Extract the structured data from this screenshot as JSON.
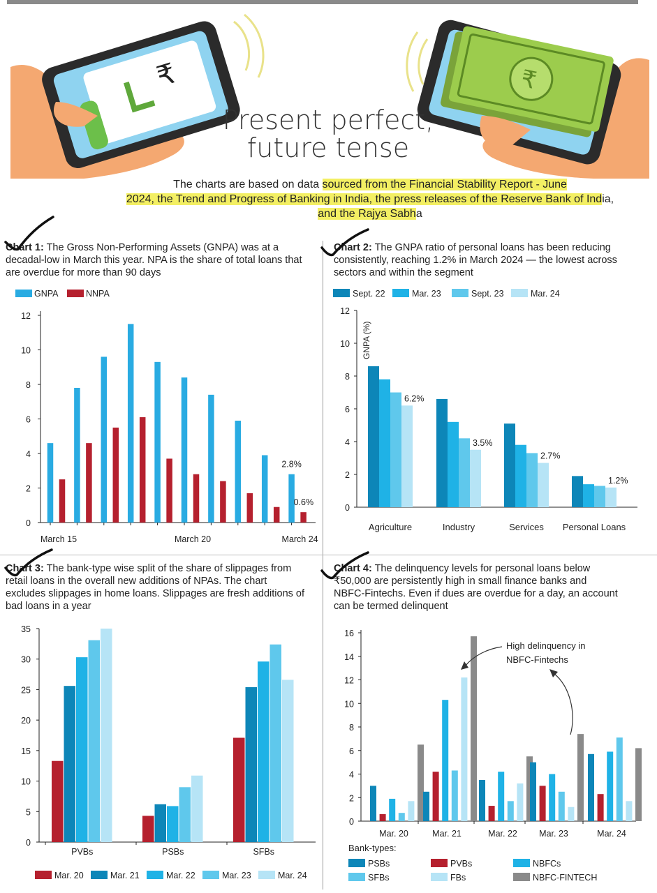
{
  "header": {
    "title_line1": "Present perfect,",
    "title_line2": "future tense",
    "intro_plain1": "The charts are based on data ",
    "intro_hl1": "sourced from the Financial Stability Report - June",
    "intro_hl2": "2024, the Trend and Progress of Banking in India, the press releases of the Reserve Bank of Ind",
    "intro_plain2": "ia,",
    "intro_hl3": "and the Rajya Sabh",
    "intro_plain3": "a"
  },
  "captions": {
    "c1_label": "Chart 1:",
    "c1_text": " The Gross Non-Performing Assets (GNPA) was at a decadal-low in March this year. NPA is the share of total loans that are overdue for more than 90 days",
    "c2_label": "Chart 2:",
    "c2_text": " The GNPA ratio of personal loans has been reducing consistently, reaching 1.2% in March 2024 — the lowest across sectors and within the segment",
    "c3_label": "Chart 3:",
    "c3_text": " The bank-type wise split of the share of slippages from retail loans in the overall new additions of NPAs. The chart excludes slippages in home loans. Slippages are fresh additions of bad loans in a year",
    "c4_label": "Chart 4:",
    "c4_text": " The delinquency levels for personal loans below ₹50,000 are persistently high in small finance banks and NBFC-Fintechs. Even if dues are overdue for a day, an account can be termed delinquent"
  },
  "colors": {
    "gnpa": "#29abe2",
    "nnpa": "#b5202e",
    "c2": [
      "#0d86b8",
      "#1fb2e6",
      "#5fc8ec",
      "#b6e4f6"
    ],
    "c3": [
      "#b5202e",
      "#0d86b8",
      "#1fb2e6",
      "#5fc8ec",
      "#b6e4f6"
    ],
    "c4": [
      "#0d86b8",
      "#b5202e",
      "#1fb2e6",
      "#5fc8ec",
      "#b6e4f6",
      "#8a8a8a"
    ]
  },
  "chart_data": [
    {
      "id": "chart1",
      "type": "bar",
      "legend": [
        "GNPA",
        "NNPA"
      ],
      "categories": [
        "March 15",
        "",
        "",
        "",
        "",
        "March 20",
        "",
        "",
        "",
        "March 24"
      ],
      "series": [
        {
          "name": "GNPA",
          "values": [
            4.6,
            7.8,
            9.6,
            11.5,
            9.3,
            8.4,
            7.4,
            5.9,
            3.9,
            2.8
          ]
        },
        {
          "name": "NNPA",
          "values": [
            2.5,
            4.6,
            5.5,
            6.1,
            3.7,
            2.8,
            2.4,
            1.7,
            0.9,
            0.6
          ]
        }
      ],
      "yticks": [
        "0",
        "2",
        "4",
        "6",
        "8",
        "10",
        "12"
      ],
      "ylim": [
        0,
        12
      ],
      "annotations": [
        "2.8%",
        "0.6%"
      ]
    },
    {
      "id": "chart2",
      "type": "bar",
      "legend": [
        "Sept. 22",
        "Mar. 23",
        "Sept. 23",
        "Mar. 24"
      ],
      "ylabel": "GNPA (%)",
      "categories": [
        "Agriculture",
        "Industry",
        "Services",
        "Personal Loans"
      ],
      "series": [
        {
          "name": "Sept. 22",
          "values": [
            8.6,
            6.6,
            5.1,
            1.9
          ]
        },
        {
          "name": "Mar. 23",
          "values": [
            7.8,
            5.2,
            3.8,
            1.4
          ]
        },
        {
          "name": "Sept. 23",
          "values": [
            7.0,
            4.2,
            3.3,
            1.3
          ]
        },
        {
          "name": "Mar. 24",
          "values": [
            6.2,
            3.5,
            2.7,
            1.2
          ]
        }
      ],
      "yticks": [
        "0",
        "2",
        "4",
        "6",
        "8",
        "10",
        "12"
      ],
      "ylim": [
        0,
        12
      ],
      "annotations": [
        "6.2%",
        "3.5%",
        "2.7%",
        "1.2%"
      ]
    },
    {
      "id": "chart3",
      "type": "bar",
      "legend": [
        "Mar. 20",
        "Mar. 21",
        "Mar. 22",
        "Mar. 23",
        "Mar. 24"
      ],
      "categories": [
        "PVBs",
        "PSBs",
        "SFBs"
      ],
      "series": [
        {
          "name": "Mar. 20",
          "values": [
            13.3,
            4.3,
            17.1
          ]
        },
        {
          "name": "Mar. 21",
          "values": [
            25.6,
            6.2,
            25.4
          ]
        },
        {
          "name": "Mar. 22",
          "values": [
            30.3,
            5.9,
            29.6
          ]
        },
        {
          "name": "Mar. 23",
          "values": [
            33.1,
            9.0,
            32.4
          ]
        },
        {
          "name": "Mar. 24",
          "values": [
            35.0,
            10.9,
            26.6
          ]
        }
      ],
      "yticks": [
        "0",
        "5",
        "10",
        "15",
        "20",
        "25",
        "30",
        "35"
      ],
      "ylim": [
        0,
        35
      ]
    },
    {
      "id": "chart4",
      "type": "bar",
      "legend_title": "Bank-types:",
      "legend": [
        "PSBs",
        "PVBs",
        "NBFCs",
        "SFBs",
        "FBs",
        "NBFC-FINTECH"
      ],
      "categories": [
        "Mar. 20",
        "Mar. 21",
        "Mar. 22",
        "Mar. 23",
        "Mar. 24"
      ],
      "series": [
        {
          "name": "PSBs",
          "values": [
            3.0,
            2.5,
            3.5,
            5.0,
            5.7
          ]
        },
        {
          "name": "PVBs",
          "values": [
            0.6,
            4.2,
            1.3,
            3.0,
            2.3
          ]
        },
        {
          "name": "NBFCs",
          "values": [
            1.9,
            10.3,
            4.2,
            4.0,
            5.9
          ]
        },
        {
          "name": "SFBs",
          "values": [
            0.7,
            4.3,
            1.7,
            2.5,
            7.1
          ]
        },
        {
          "name": "FBs",
          "values": [
            1.7,
            12.2,
            3.2,
            1.2,
            1.7
          ]
        },
        {
          "name": "NBFC-FINTECH",
          "values": [
            6.5,
            15.7,
            5.5,
            7.4,
            6.2
          ]
        }
      ],
      "yticks": [
        "0",
        "2",
        "4",
        "6",
        "8",
        "10",
        "12",
        "14",
        "16"
      ],
      "ylim": [
        0,
        16
      ],
      "annotation_line1": "High delinquency in",
      "annotation_line2": "NBFC-Fintechs"
    }
  ]
}
